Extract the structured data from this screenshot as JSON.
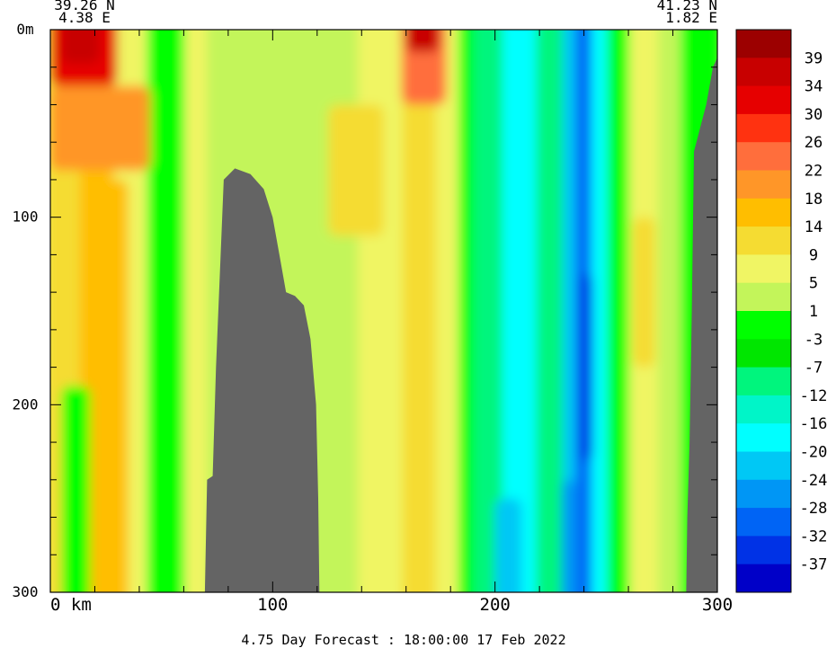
{
  "chart_data": {
    "type": "heatmap",
    "title": "4.75 Day Forecast : 18:00:00  17 Feb 2022",
    "corner_labels": {
      "left_lat": "39.26 N",
      "left_lon": "4.38 E",
      "right_lat": "41.23 N",
      "right_lon": "1.82 E"
    },
    "x_axis": {
      "range": [
        0,
        300
      ],
      "ticks": [
        {
          "value": 0,
          "label": "0  km"
        },
        {
          "value": 100,
          "label": "100"
        },
        {
          "value": 200,
          "label": "200"
        },
        {
          "value": 300,
          "label": "300"
        }
      ]
    },
    "y_axis": {
      "range": [
        0,
        300
      ],
      "inverted": true,
      "ticks": [
        {
          "value": 0,
          "label": "0m"
        },
        {
          "value": 100,
          "label": "100"
        },
        {
          "value": 200,
          "label": "200"
        },
        {
          "value": 300,
          "label": "300"
        }
      ]
    },
    "colorbar": {
      "labels": [
        "39",
        "34",
        "30",
        "26",
        "22",
        "18",
        "14",
        "9",
        "5",
        "1",
        "-3",
        "-7",
        "-12",
        "-16",
        "-20",
        "-24",
        "-28",
        "-32",
        "-37"
      ],
      "colors": [
        "#9c0000",
        "#c80000",
        "#e60000",
        "#ff3210",
        "#ff6e3c",
        "#ff9628",
        "#ffbe00",
        "#f5dc32",
        "#f0f564",
        "#c3f55a",
        "#00ff00",
        "#00e600",
        "#00f57d",
        "#00f5c8",
        "#00ffff",
        "#00c8f5",
        "#0096f5",
        "#0064f5",
        "#0032e6",
        "#0000c8"
      ]
    },
    "land_color": "#646464",
    "columns": [
      {
        "x": [
          0,
          15
        ],
        "value": 10
      },
      {
        "x": [
          15,
          30
        ],
        "value": 14
      },
      {
        "x": [
          30,
          45
        ],
        "value": 8
      },
      {
        "x": [
          45,
          62
        ],
        "value": 0
      },
      {
        "x": [
          62,
          72
        ],
        "value": 5
      },
      {
        "x": [
          72,
          120
        ],
        "value": 4
      },
      {
        "x": [
          120,
          140
        ],
        "value": 3
      },
      {
        "x": [
          140,
          160
        ],
        "value": 6
      },
      {
        "x": [
          160,
          175
        ],
        "value": 9
      },
      {
        "x": [
          175,
          185
        ],
        "value": 5
      },
      {
        "x": [
          185,
          192
        ],
        "value": 0
      },
      {
        "x": [
          192,
          205
        ],
        "value": -8
      },
      {
        "x": [
          205,
          220
        ],
        "value": -17
      },
      {
        "x": [
          220,
          232
        ],
        "value": -8
      },
      {
        "x": [
          232,
          238
        ],
        "value": -22
      },
      {
        "x": [
          238,
          245
        ],
        "value": -30
      },
      {
        "x": [
          245,
          252
        ],
        "value": -20
      },
      {
        "x": [
          252,
          262
        ],
        "value": -3
      },
      {
        "x": [
          262,
          275
        ],
        "value": 7
      },
      {
        "x": [
          275,
          285
        ],
        "value": 3
      },
      {
        "x": [
          285,
          300
        ],
        "value": 0
      }
    ],
    "features": [
      {
        "x": [
          0,
          30
        ],
        "y": [
          0,
          30
        ],
        "value": 30
      },
      {
        "x": [
          5,
          22
        ],
        "y": [
          0,
          18
        ],
        "value": 36
      },
      {
        "x": [
          158,
          178
        ],
        "y": [
          0,
          40
        ],
        "value": 24
      },
      {
        "x": [
          160,
          175
        ],
        "y": [
          0,
          12
        ],
        "value": 36
      },
      {
        "x": [
          0,
          45
        ],
        "y": [
          30,
          75
        ],
        "value": 20
      },
      {
        "x": [
          20,
          35
        ],
        "y": [
          80,
          300
        ],
        "value": 16
      },
      {
        "x": [
          5,
          18
        ],
        "y": [
          190,
          300
        ],
        "value": 0
      },
      {
        "x": [
          125,
          150
        ],
        "y": [
          40,
          110
        ],
        "value": 12
      },
      {
        "x": [
          200,
          212
        ],
        "y": [
          250,
          300
        ],
        "value": -24
      },
      {
        "x": [
          230,
          236
        ],
        "y": [
          240,
          300
        ],
        "value": -28
      },
      {
        "x": [
          238,
          244
        ],
        "y": [
          130,
          230
        ],
        "value": -36
      },
      {
        "x": [
          262,
          272
        ],
        "y": [
          100,
          180
        ],
        "value": 10
      }
    ],
    "land": [
      {
        "x": 69.5,
        "y": 300
      },
      {
        "x": 70.5,
        "y": 240
      },
      {
        "x": 73,
        "y": 238
      },
      {
        "x": 74.5,
        "y": 180
      },
      {
        "x": 78,
        "y": 80
      },
      {
        "x": 83,
        "y": 74
      },
      {
        "x": 90,
        "y": 77
      },
      {
        "x": 96,
        "y": 85
      },
      {
        "x": 100,
        "y": 100
      },
      {
        "x": 103,
        "y": 120
      },
      {
        "x": 106,
        "y": 140
      },
      {
        "x": 110,
        "y": 142
      },
      {
        "x": 114,
        "y": 147
      },
      {
        "x": 117,
        "y": 165
      },
      {
        "x": 119.5,
        "y": 200
      },
      {
        "x": 120.5,
        "y": 250
      },
      {
        "x": 121,
        "y": 300
      },
      {
        "x": 286,
        "y": 300
      },
      {
        "x": 286.5,
        "y": 260
      },
      {
        "x": 287.5,
        "y": 220
      },
      {
        "x": 288.5,
        "y": 150
      },
      {
        "x": 289.5,
        "y": 65
      },
      {
        "x": 295,
        "y": 40
      },
      {
        "x": 298,
        "y": 20
      },
      {
        "x": 300,
        "y": 15
      },
      {
        "x": 300,
        "y": 300
      }
    ]
  }
}
